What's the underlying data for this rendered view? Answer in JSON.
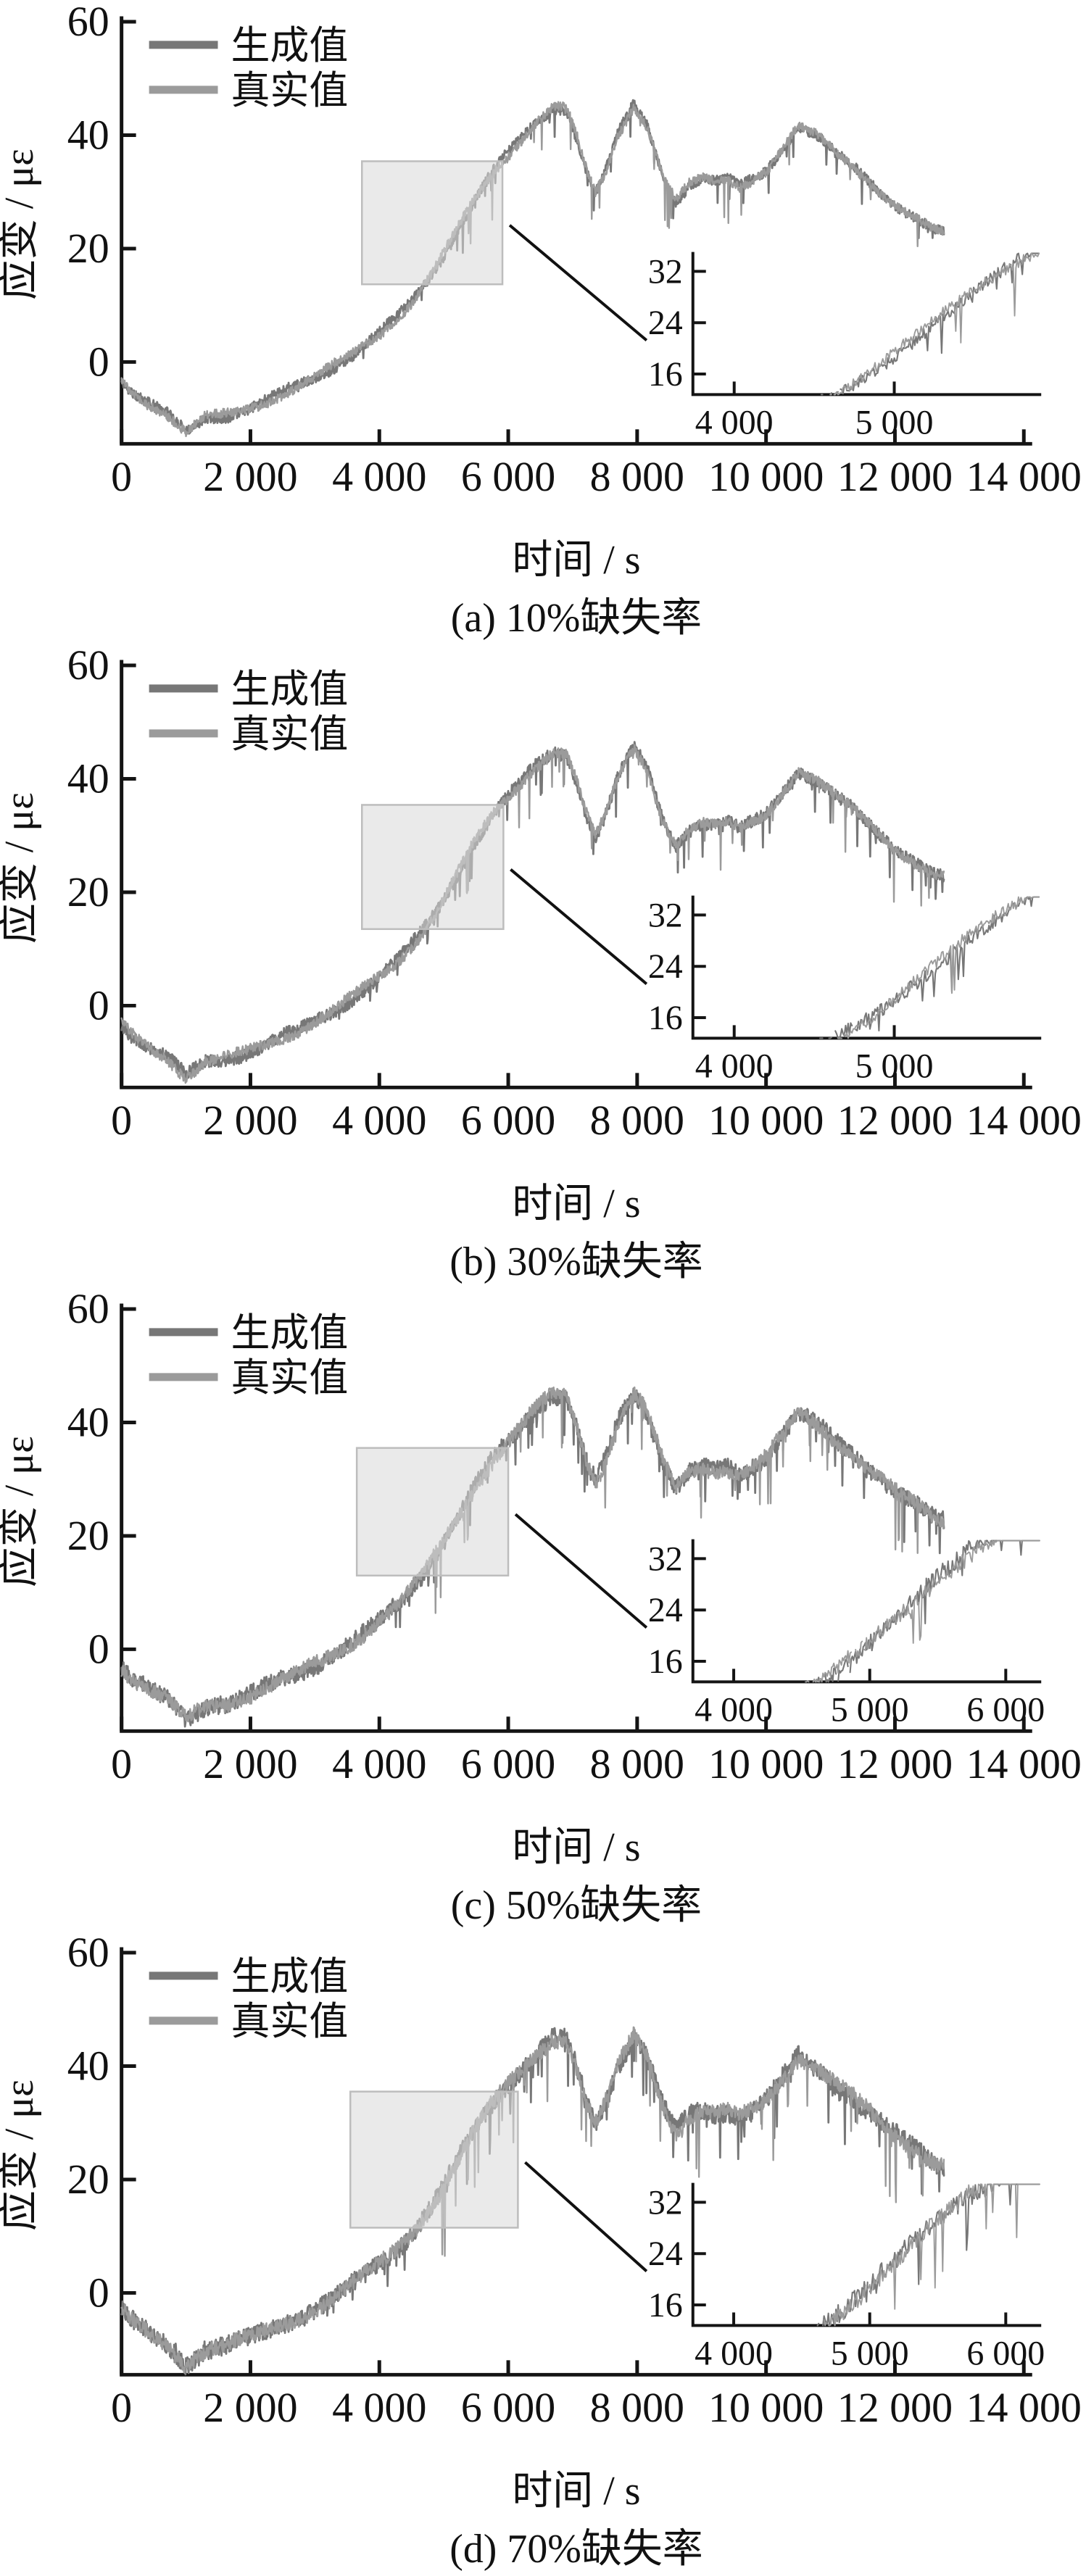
{
  "colors": {
    "generated": "#777777",
    "real": "#9B9B9B",
    "axis": "#141414",
    "text": "#111111",
    "highlight_fill": "#D8D8D8",
    "highlight_stroke": "#BDBDBD",
    "callout": "#111111"
  },
  "chart_data": [
    {
      "type": "line",
      "title": "(a) 10%缺失率",
      "xlabel": "时间 / s",
      "ylabel": "应变 / με",
      "xlim": [
        0,
        14000
      ],
      "ylim": [
        -14.4,
        60
      ],
      "grid": false,
      "legend_position": "top-left",
      "x_ticks": [
        0,
        2000,
        4000,
        6000,
        8000,
        10000,
        12000,
        14000
      ],
      "x_tick_labels": [
        "0",
        "2 000",
        "4 000",
        "6 000",
        "8 000",
        "10 000",
        "12 000",
        "14 000"
      ],
      "y_ticks": [
        60,
        40,
        20,
        0
      ],
      "y_tick_labels": [
        "60",
        "40",
        "20",
        "0"
      ],
      "series": [
        {
          "name": "生成值"
        },
        {
          "name": "真实值"
        }
      ],
      "trend": {
        "x": [
          0,
          150,
          400,
          700,
          1000,
          1300,
          1600,
          2000,
          2400,
          2800,
          3200,
          3600,
          4000,
          4300,
          4600,
          4900,
          5200,
          5500,
          5800,
          6100,
          6400,
          6700,
          6900,
          7050,
          7200,
          7350,
          7500,
          7700,
          7950,
          8150,
          8400,
          8600,
          8800,
          9000,
          9200,
          9400,
          9600,
          9800,
          10000,
          10200,
          10500,
          10800,
          11100,
          11400,
          11700,
          12000,
          12300,
          12600,
          12760
        ],
        "y": [
          -3,
          -5,
          -7,
          -9,
          -12.5,
          -10,
          -9.5,
          -8,
          -6,
          -4,
          -1.5,
          1.5,
          5,
          8,
          12,
          17,
          23,
          29,
          34,
          38,
          42,
          45,
          44.5,
          40,
          34,
          29.5,
          33,
          40,
          45.5,
          42,
          33,
          28.5,
          31,
          32,
          31.5,
          32,
          31,
          32.5,
          34,
          37,
          41.5,
          39.5,
          36.5,
          34,
          31,
          28,
          25.5,
          23,
          22.5
        ]
      },
      "noise": {
        "seed": 11,
        "gen_amp": 0.9,
        "gen_spike": 6,
        "gen_spike_p": 0.04,
        "real_amp": 0.8,
        "real_spike": 8,
        "real_spike_p": 0.03,
        "real_spike_min": 24
      },
      "highlight": {
        "x": [
          3730,
          5910
        ],
        "y": [
          13.7,
          35.4
        ]
      },
      "inset": {
        "x_window": [
          3742,
          5909
        ],
        "y_window": [
          12.8,
          34.8
        ],
        "x_ticks": [
          4000,
          5000
        ],
        "x_tick_labels": [
          "4 000",
          "5 000"
        ],
        "y_ticks": [
          32,
          24,
          16
        ],
        "y_tick_labels": [
          "32",
          "24",
          "16"
        ]
      }
    },
    {
      "type": "line",
      "title": "(b) 30%缺失率",
      "xlabel": "时间 / s",
      "ylabel": "应变 / με",
      "xlim": [
        0,
        14000
      ],
      "ylim": [
        -14.4,
        60
      ],
      "grid": false,
      "legend_position": "top-left",
      "x_ticks": [
        0,
        2000,
        4000,
        6000,
        8000,
        10000,
        12000,
        14000
      ],
      "x_tick_labels": [
        "0",
        "2 000",
        "4 000",
        "6 000",
        "8 000",
        "10 000",
        "12 000",
        "14 000"
      ],
      "y_ticks": [
        60,
        40,
        20,
        0
      ],
      "y_tick_labels": [
        "60",
        "40",
        "20",
        "0"
      ],
      "series": [
        {
          "name": "生成值"
        },
        {
          "name": "真实值"
        }
      ],
      "trend": {
        "x": [
          0,
          150,
          400,
          700,
          1000,
          1300,
          1600,
          2000,
          2400,
          2800,
          3200,
          3600,
          4000,
          4300,
          4600,
          4900,
          5200,
          5500,
          5800,
          6100,
          6400,
          6700,
          6900,
          7050,
          7200,
          7350,
          7500,
          7700,
          7950,
          8150,
          8400,
          8600,
          8800,
          9000,
          9200,
          9400,
          9600,
          9800,
          10000,
          10200,
          10500,
          10800,
          11100,
          11400,
          11700,
          12000,
          12300,
          12600,
          12760
        ],
        "y": [
          -3,
          -5,
          -7,
          -9,
          -12.5,
          -10,
          -9.5,
          -8,
          -6,
          -4,
          -1.5,
          1.5,
          5,
          8,
          12,
          17,
          23,
          29,
          34,
          38,
          42,
          45,
          44.5,
          40,
          34,
          29.5,
          33,
          40,
          45.5,
          42,
          33,
          28.5,
          31,
          32,
          31.5,
          32,
          31,
          32.5,
          34,
          37,
          41.5,
          39.5,
          36.5,
          34,
          31,
          28,
          25.5,
          23,
          22.5
        ]
      },
      "noise": {
        "seed": 23,
        "gen_amp": 1.1,
        "gen_spike": 6.5,
        "gen_spike_p": 0.045,
        "real_amp": 0.9,
        "real_spike": 9,
        "real_spike_p": 0.035,
        "real_spike_min": 22
      },
      "highlight": {
        "x": [
          3730,
          5925
        ],
        "y": [
          13.5,
          35.4
        ]
      },
      "inset": {
        "x_window": [
          3742,
          5909
        ],
        "y_window": [
          12.8,
          34.8
        ],
        "x_ticks": [
          4000,
          5000
        ],
        "x_tick_labels": [
          "4 000",
          "5 000"
        ],
        "y_ticks": [
          32,
          24,
          16
        ],
        "y_tick_labels": [
          "32",
          "24",
          "16"
        ]
      }
    },
    {
      "type": "line",
      "title": "(c) 50%缺失率",
      "xlabel": "时间 / s",
      "ylabel": "应变 / με",
      "xlim": [
        0,
        14000
      ],
      "ylim": [
        -14.4,
        60
      ],
      "grid": false,
      "legend_position": "top-left",
      "x_ticks": [
        0,
        2000,
        4000,
        6000,
        8000,
        10000,
        12000,
        14000
      ],
      "x_tick_labels": [
        "0",
        "2 000",
        "4 000",
        "6 000",
        "8 000",
        "10 000",
        "12 000",
        "14 000"
      ],
      "y_ticks": [
        60,
        40,
        20,
        0
      ],
      "y_tick_labels": [
        "60",
        "40",
        "20",
        "0"
      ],
      "series": [
        {
          "name": "生成值"
        },
        {
          "name": "真实值"
        }
      ],
      "trend": {
        "x": [
          0,
          150,
          400,
          700,
          1000,
          1300,
          1600,
          2000,
          2400,
          2800,
          3200,
          3600,
          4000,
          4300,
          4600,
          4900,
          5200,
          5500,
          5800,
          6100,
          6400,
          6700,
          6900,
          7050,
          7200,
          7350,
          7500,
          7700,
          7950,
          8150,
          8400,
          8600,
          8800,
          9000,
          9200,
          9400,
          9600,
          9800,
          10000,
          10200,
          10500,
          10800,
          11100,
          11400,
          11700,
          12000,
          12300,
          12600,
          12760
        ],
        "y": [
          -3,
          -5,
          -7,
          -9,
          -12.5,
          -10,
          -9.5,
          -8,
          -6,
          -4,
          -1.5,
          1.5,
          5,
          8,
          12,
          17,
          23,
          29,
          34,
          38,
          42,
          45,
          44.5,
          40,
          34,
          29.5,
          33,
          40,
          45.5,
          42,
          33,
          28.5,
          31,
          32,
          31.5,
          32,
          31,
          32.5,
          34,
          37,
          41.5,
          39.5,
          36.5,
          34,
          31,
          28,
          25.5,
          23,
          22.5
        ]
      },
      "noise": {
        "seed": 37,
        "gen_amp": 1.5,
        "gen_spike": 8,
        "gen_spike_p": 0.06,
        "real_amp": 1.2,
        "real_spike": 11,
        "real_spike_p": 0.05,
        "real_spike_min": 16
      },
      "highlight": {
        "x": [
          3650,
          6000
        ],
        "y": [
          13.0,
          35.5
        ]
      },
      "inset": {
        "x_window": [
          3700,
          6250
        ],
        "y_window": [
          12.8,
          34.8
        ],
        "x_ticks": [
          4000,
          5000,
          6000
        ],
        "x_tick_labels": [
          "4 000",
          "5 000",
          "6 000"
        ],
        "y_ticks": [
          32,
          24,
          16
        ],
        "y_tick_labels": [
          "32",
          "24",
          "16"
        ]
      }
    },
    {
      "type": "line",
      "title": "(d) 70%缺失率",
      "xlabel": "时间 / s",
      "ylabel": "应变 / με",
      "xlim": [
        0,
        14000
      ],
      "ylim": [
        -14.4,
        60
      ],
      "grid": false,
      "legend_position": "top-left",
      "x_ticks": [
        0,
        2000,
        4000,
        6000,
        8000,
        10000,
        12000,
        14000
      ],
      "x_tick_labels": [
        "0",
        "2 000",
        "4 000",
        "6 000",
        "8 000",
        "10 000",
        "12 000",
        "14 000"
      ],
      "y_ticks": [
        60,
        40,
        20,
        0
      ],
      "y_tick_labels": [
        "60",
        "40",
        "20",
        "0"
      ],
      "series": [
        {
          "name": "生成值"
        },
        {
          "name": "真实值"
        }
      ],
      "trend": {
        "x": [
          0,
          150,
          400,
          700,
          1000,
          1300,
          1600,
          2000,
          2400,
          2800,
          3200,
          3600,
          4000,
          4300,
          4600,
          4900,
          5200,
          5500,
          5800,
          6100,
          6400,
          6700,
          6900,
          7050,
          7200,
          7350,
          7500,
          7700,
          7950,
          8150,
          8400,
          8600,
          8800,
          9000,
          9200,
          9400,
          9600,
          9800,
          10000,
          10200,
          10500,
          10800,
          11100,
          11400,
          11700,
          12000,
          12300,
          12600,
          12760
        ],
        "y": [
          -3,
          -5,
          -7,
          -9,
          -12.5,
          -10,
          -9.5,
          -8,
          -6,
          -4,
          -1.5,
          1.5,
          5,
          8,
          12,
          17,
          23,
          29,
          34,
          38,
          42,
          45,
          44.5,
          40,
          34,
          29.5,
          33,
          40,
          45.5,
          42,
          33,
          28.5,
          31,
          32,
          31.5,
          32,
          31,
          32.5,
          34,
          37,
          41.5,
          39.5,
          36.5,
          34,
          31,
          28,
          25.5,
          23,
          22.5
        ]
      },
      "noise": {
        "seed": 51,
        "gen_amp": 1.6,
        "gen_spike": 9,
        "gen_spike_p": 0.07,
        "real_amp": 1.3,
        "real_spike": 12,
        "real_spike_p": 0.055,
        "real_spike_min": 15
      },
      "highlight": {
        "x": [
          3550,
          6150
        ],
        "y": [
          11.5,
          35.5
        ]
      },
      "inset": {
        "x_window": [
          3700,
          6250
        ],
        "y_window": [
          12.8,
          34.8
        ],
        "x_ticks": [
          4000,
          5000,
          6000
        ],
        "x_tick_labels": [
          "4 000",
          "5 000",
          "6 000"
        ],
        "y_ticks": [
          32,
          24,
          16
        ],
        "y_tick_labels": [
          "32",
          "24",
          "16"
        ]
      }
    }
  ]
}
